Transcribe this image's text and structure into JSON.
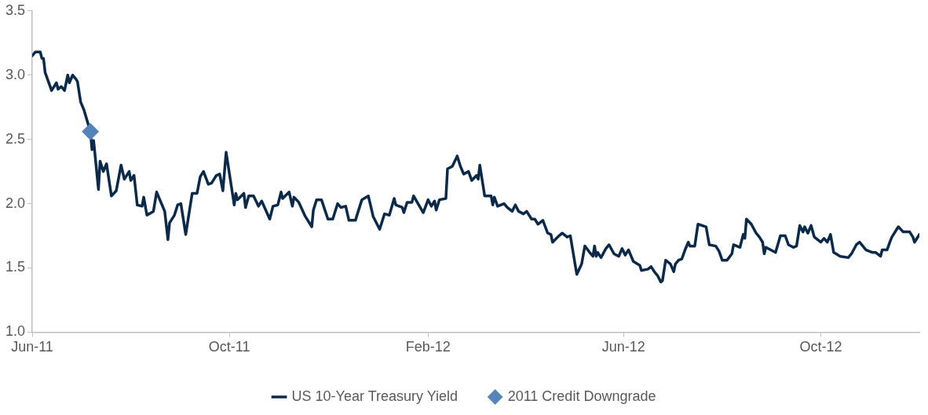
{
  "chart_data": {
    "type": "line",
    "xlim": [
      "2011-06-01",
      "2012-12-01"
    ],
    "xticks": [
      {
        "value": "2011-06-01",
        "label": "Jun-11"
      },
      {
        "value": "2011-10-01",
        "label": "Oct-11"
      },
      {
        "value": "2012-02-01",
        "label": "Feb-12"
      },
      {
        "value": "2012-06-01",
        "label": "Jun-12"
      },
      {
        "value": "2012-10-01",
        "label": "Oct-12"
      }
    ],
    "ylim": [
      1,
      3.5
    ],
    "yticks": [
      {
        "value": 1,
        "label": "1.0"
      },
      1.5,
      {
        "value": 2,
        "label": "2.0"
      },
      2.5,
      {
        "value": 3,
        "label": "3.0"
      },
      3.5
    ],
    "legend": "bottom",
    "series": [
      {
        "name": "US 10-Year Treasury Yield",
        "color": "#0b2a4a",
        "marker": "none",
        "line_style": "solid",
        "x": [
          "2011-06-01",
          "2011-06-03",
          "2011-06-06",
          "2011-06-07",
          "2011-06-08",
          "2011-06-09",
          "2011-06-13",
          "2011-06-16",
          "2011-06-17",
          "2011-06-19",
          "2011-06-21",
          "2011-06-23",
          "2011-06-24",
          "2011-06-26",
          "2011-06-28",
          "2011-06-29",
          "2011-07-01",
          "2011-07-03",
          "2011-07-07",
          "2011-07-08",
          "2011-07-09",
          "2011-07-12",
          "2011-07-13",
          "2011-07-15",
          "2011-07-17",
          "2011-07-20",
          "2011-07-23",
          "2011-07-26",
          "2011-07-28",
          "2011-07-31",
          "2011-08-01",
          "2011-08-03",
          "2011-08-05",
          "2011-08-08",
          "2011-08-09",
          "2011-08-11",
          "2011-08-15",
          "2011-08-17",
          "2011-08-22",
          "2011-08-24",
          "2011-08-25",
          "2011-08-28",
          "2011-08-30",
          "2011-09-01",
          "2011-09-04",
          "2011-09-08",
          "2011-09-11",
          "2011-09-13",
          "2011-09-15",
          "2011-09-18",
          "2011-09-20",
          "2011-09-23",
          "2011-09-25",
          "2011-09-27",
          "2011-09-29",
          "2011-10-04",
          "2011-10-05",
          "2011-10-06",
          "2011-10-10",
          "2011-10-11",
          "2011-10-13",
          "2011-10-16",
          "2011-10-19",
          "2011-10-21",
          "2011-10-26",
          "2011-10-28",
          "2011-10-31",
          "2011-11-02",
          "2011-11-03",
          "2011-11-07",
          "2011-11-09",
          "2011-11-10",
          "2011-11-13",
          "2011-11-17",
          "2011-11-21",
          "2011-11-22",
          "2011-11-24",
          "2011-11-27",
          "2011-12-01",
          "2011-12-04",
          "2011-12-07",
          "2011-12-09",
          "2011-12-12",
          "2011-12-14",
          "2011-12-18",
          "2011-12-22",
          "2011-12-26",
          "2011-12-29",
          "2012-01-02",
          "2012-01-05",
          "2012-01-08",
          "2012-01-11",
          "2012-01-12",
          "2012-01-16",
          "2012-01-17",
          "2012-01-19",
          "2012-01-22",
          "2012-01-23",
          "2012-01-29",
          "2012-02-01",
          "2012-02-03",
          "2012-02-05",
          "2012-02-06",
          "2012-02-08",
          "2012-02-12",
          "2012-02-13",
          "2012-02-16",
          "2012-02-19",
          "2012-02-21",
          "2012-02-23",
          "2012-02-26",
          "2012-02-28",
          "2012-03-02",
          "2012-03-03",
          "2012-03-04",
          "2012-03-07",
          "2012-03-11",
          "2012-03-12",
          "2012-03-13",
          "2012-03-15",
          "2012-03-19",
          "2012-03-21",
          "2012-03-24",
          "2012-03-26",
          "2012-03-28",
          "2012-03-31",
          "2012-04-02",
          "2012-04-05",
          "2012-04-07",
          "2012-04-09",
          "2012-04-12",
          "2012-04-15",
          "2012-04-17",
          "2012-04-18",
          "2012-04-22",
          "2012-04-24",
          "2012-04-27",
          "2012-04-29",
          "2012-05-03",
          "2012-05-06",
          "2012-05-08",
          "2012-05-11",
          "2012-05-13",
          "2012-05-14",
          "2012-05-15",
          "2012-05-16",
          "2012-05-18",
          "2012-05-21",
          "2012-05-23",
          "2012-05-26",
          "2012-05-29",
          "2012-05-31",
          "2012-06-02",
          "2012-06-04",
          "2012-06-07",
          "2012-06-11",
          "2012-06-12",
          "2012-06-16",
          "2012-06-18",
          "2012-06-20",
          "2012-06-22",
          "2012-06-24",
          "2012-06-25",
          "2012-06-27",
          "2012-06-30",
          "2012-07-02",
          "2012-07-03",
          "2012-07-05",
          "2012-07-07",
          "2012-07-09",
          "2012-07-11",
          "2012-07-12",
          "2012-07-15",
          "2012-07-17",
          "2012-07-22",
          "2012-07-24",
          "2012-07-28",
          "2012-07-30",
          "2012-08-01",
          "2012-08-04",
          "2012-08-07",
          "2012-08-08",
          "2012-08-12",
          "2012-08-14",
          "2012-08-15",
          "2012-08-16",
          "2012-08-19",
          "2012-08-22",
          "2012-08-24",
          "2012-08-26",
          "2012-08-27",
          "2012-08-28",
          "2012-08-31",
          "2012-09-03",
          "2012-09-06",
          "2012-09-09",
          "2012-09-11",
          "2012-09-14",
          "2012-09-16",
          "2012-09-18",
          "2012-09-20",
          "2012-09-21",
          "2012-09-23",
          "2012-09-25",
          "2012-09-27",
          "2012-10-01",
          "2012-10-03",
          "2012-10-05",
          "2012-10-07",
          "2012-10-09",
          "2012-10-13",
          "2012-10-18",
          "2012-10-20",
          "2012-10-23",
          "2012-10-25",
          "2012-10-29",
          "2012-11-02",
          "2012-11-04",
          "2012-11-07",
          "2012-11-08",
          "2012-11-11",
          "2012-11-13",
          "2012-11-14",
          "2012-11-18",
          "2012-11-21",
          "2012-11-25",
          "2012-11-27",
          "2012-11-28",
          "2012-12-01"
        ],
        "values": [
          3.15,
          3.18,
          3.18,
          3.13,
          3.13,
          3.02,
          2.88,
          2.94,
          2.89,
          2.91,
          2.88,
          3.0,
          2.94,
          3.0,
          2.97,
          2.95,
          2.79,
          2.73,
          2.56,
          2.42,
          2.49,
          2.11,
          2.33,
          2.25,
          2.31,
          2.06,
          2.1,
          2.3,
          2.19,
          2.25,
          2.18,
          2.22,
          1.99,
          1.98,
          2.05,
          1.91,
          1.94,
          2.09,
          1.94,
          1.72,
          1.85,
          1.91,
          1.99,
          2.0,
          1.76,
          2.08,
          2.08,
          2.21,
          2.25,
          2.15,
          2.16,
          2.22,
          2.23,
          2.1,
          2.4,
          1.99,
          2.08,
          2.03,
          2.08,
          1.97,
          2.06,
          2.06,
          1.98,
          2.02,
          1.88,
          1.98,
          1.99,
          2.09,
          2.04,
          2.09,
          1.98,
          2.05,
          2.01,
          1.9,
          1.82,
          1.95,
          2.03,
          2.03,
          1.88,
          1.88,
          2.0,
          1.97,
          1.98,
          1.87,
          1.87,
          2.03,
          2.06,
          1.9,
          1.8,
          1.92,
          1.91,
          2.04,
          1.99,
          1.97,
          1.93,
          2.01,
          2.01,
          2.06,
          1.93,
          2.03,
          1.98,
          2.02,
          1.95,
          2.03,
          2.04,
          2.27,
          2.29,
          2.37,
          2.29,
          2.23,
          2.25,
          2.18,
          2.22,
          2.19,
          2.3,
          2.06,
          2.06,
          1.99,
          2.05,
          1.98,
          2.0,
          1.97,
          1.94,
          1.99,
          1.94,
          1.92,
          1.94,
          1.88,
          1.88,
          1.84,
          1.87,
          1.77,
          1.76,
          1.7,
          1.75,
          1.77,
          1.74,
          1.75,
          1.45,
          1.53,
          1.67,
          1.62,
          1.59,
          1.67,
          1.59,
          1.62,
          1.58,
          1.65,
          1.68,
          1.61,
          1.59,
          1.65,
          1.6,
          1.64,
          1.55,
          1.52,
          1.48,
          1.49,
          1.51,
          1.47,
          1.44,
          1.39,
          1.4,
          1.56,
          1.53,
          1.47,
          1.53,
          1.56,
          1.57,
          1.64,
          1.7,
          1.67,
          1.67,
          1.84,
          1.82,
          1.68,
          1.67,
          1.63,
          1.56,
          1.56,
          1.61,
          1.68,
          1.66,
          1.76,
          1.73,
          1.88,
          1.84,
          1.77,
          1.74,
          1.7,
          1.61,
          1.66,
          1.64,
          1.62,
          1.75,
          1.75,
          1.68,
          1.66,
          1.67,
          1.83,
          1.78,
          1.82,
          1.77,
          1.83,
          1.74,
          1.7,
          1.73,
          1.7,
          1.76,
          1.62,
          1.59,
          1.58,
          1.61,
          1.68,
          1.7,
          1.64,
          1.62,
          1.62,
          1.59,
          1.64,
          1.64,
          1.71,
          1.74,
          1.82,
          1.78,
          1.78,
          1.74,
          1.7,
          1.76
        ]
      },
      {
        "name": "2011 Credit Downgrade",
        "type": "scatter",
        "color": "#5585b8",
        "marker": "diamond",
        "x": [
          "2011-07-07"
        ],
        "values": [
          2.56
        ]
      }
    ]
  }
}
